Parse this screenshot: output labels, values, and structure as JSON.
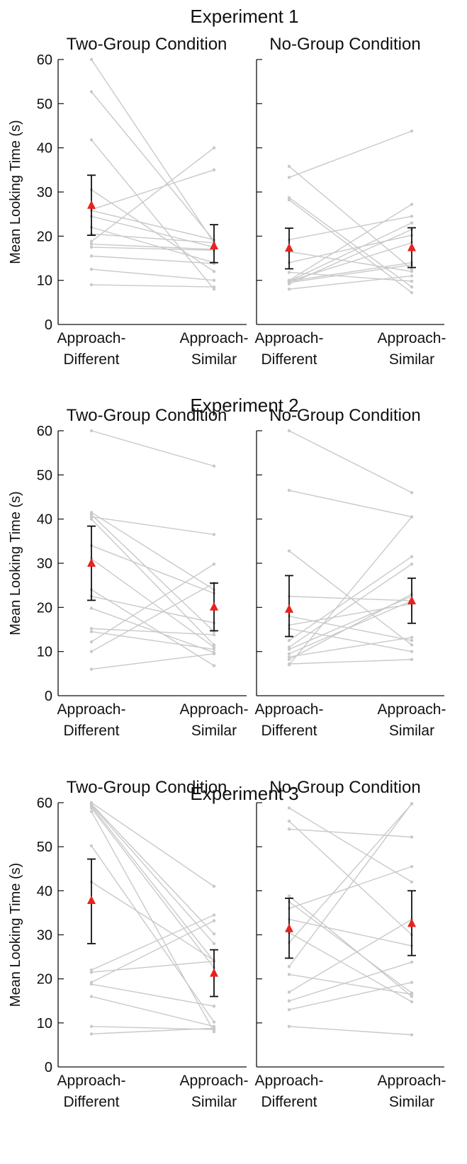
{
  "figure": {
    "ylabel": "Mean Looking Time (s)",
    "yticks": [
      0,
      10,
      20,
      30,
      40,
      50,
      60
    ],
    "categories": [
      [
        "Approach-",
        "Different"
      ],
      [
        "Approach-",
        "Similar"
      ]
    ],
    "colors": {
      "participant_line": "#c9c9c9",
      "participant_point": "#c9c9c9",
      "mean_marker": "#e8231e",
      "error_bar": "#111111",
      "axis": "#111111"
    }
  },
  "chart_data": [
    {
      "type": "line",
      "experiment": "Experiment 1",
      "title": "Two-Group Condition",
      "ylabel": "Mean Looking Time (s)",
      "ylim": [
        0,
        60
      ],
      "categories": [
        "Approach-Different",
        "Approach-Similar"
      ],
      "pairs": [
        [
          60,
          18.5
        ],
        [
          52.7,
          19
        ],
        [
          41.8,
          8
        ],
        [
          30.5,
          12
        ],
        [
          26,
          35
        ],
        [
          25.8,
          19.2
        ],
        [
          24.5,
          17.5
        ],
        [
          22,
          14
        ],
        [
          20.5,
          18.5
        ],
        [
          18.8,
          40
        ],
        [
          18.2,
          17
        ],
        [
          17.5,
          16.8
        ],
        [
          15.5,
          13.8
        ],
        [
          12.5,
          10
        ],
        [
          9,
          8.5
        ]
      ],
      "mean": [
        27,
        17.8
      ],
      "error": [
        [
          20.2,
          33.8
        ],
        [
          14,
          22.6
        ]
      ]
    },
    {
      "type": "line",
      "experiment": "Experiment 1",
      "title": "No-Group Condition",
      "ylabel": "",
      "ylim": [
        0,
        60
      ],
      "categories": [
        "Approach-Different",
        "Approach-Similar"
      ],
      "pairs": [
        [
          35.8,
          12.5
        ],
        [
          33.3,
          43.8
        ],
        [
          28.7,
          8.5
        ],
        [
          28.2,
          7.2
        ],
        [
          19.2,
          24.5
        ],
        [
          16.5,
          12
        ],
        [
          14,
          20.2
        ],
        [
          11.8,
          9.8
        ],
        [
          10,
          27.2
        ],
        [
          9.8,
          23
        ],
        [
          9.8,
          18.5
        ],
        [
          9.8,
          14
        ],
        [
          9.5,
          13.5
        ],
        [
          9.2,
          21.5
        ],
        [
          8,
          11
        ]
      ],
      "mean": [
        17.3,
        17.4
      ],
      "error": [
        [
          12.6,
          21.8
        ],
        [
          12.9,
          21.9
        ]
      ]
    },
    {
      "type": "line",
      "experiment": "Experiment 2",
      "title": "Two-Group Condition",
      "ylabel": "Mean Looking Time (s)",
      "ylim": [
        0,
        60
      ],
      "categories": [
        "Approach-Different",
        "Approach-Similar"
      ],
      "pairs": [
        [
          60,
          52
        ],
        [
          41.5,
          24
        ],
        [
          41,
          14.5
        ],
        [
          40.5,
          36.5
        ],
        [
          40,
          11.5
        ],
        [
          34,
          23.2
        ],
        [
          31,
          11
        ],
        [
          24,
          6.8
        ],
        [
          22.5,
          16.5
        ],
        [
          19.8,
          9.8
        ],
        [
          15.2,
          13.8
        ],
        [
          14.5,
          10.5
        ],
        [
          12.2,
          29.8
        ],
        [
          10,
          25.5
        ],
        [
          6,
          9.5
        ]
      ],
      "mean": [
        30,
        20.1
      ],
      "error": [
        [
          21.6,
          38.4
        ],
        [
          14.7,
          25.5
        ]
      ]
    },
    {
      "type": "line",
      "experiment": "Experiment 2",
      "title": "No-Group Condition",
      "ylabel": "",
      "ylim": [
        0,
        60
      ],
      "categories": [
        "Approach-Different",
        "Approach-Similar"
      ],
      "pairs": [
        [
          60,
          46
        ],
        [
          46.5,
          40.5
        ],
        [
          32.8,
          11.5
        ],
        [
          22.5,
          21.5
        ],
        [
          18,
          12.5
        ],
        [
          16,
          20.8
        ],
        [
          15.2,
          10
        ],
        [
          12.5,
          31.5
        ],
        [
          11,
          29.8
        ],
        [
          10.5,
          22.5
        ],
        [
          9.5,
          21.5
        ],
        [
          8.8,
          13.2
        ],
        [
          8.2,
          23
        ],
        [
          7.2,
          8.2
        ],
        [
          7,
          40.5
        ]
      ],
      "mean": [
        19.6,
        21.5
      ],
      "error": [
        [
          13.4,
          27.2
        ],
        [
          16.4,
          26.6
        ]
      ]
    },
    {
      "type": "line",
      "experiment": "Experiment 3",
      "title": "Two-Group Condition",
      "ylabel": "Mean Looking Time (s)",
      "ylim": [
        0,
        60
      ],
      "categories": [
        "Approach-Different",
        "Approach-Similar"
      ],
      "pairs": [
        [
          60,
          41
        ],
        [
          59.7,
          30.2
        ],
        [
          59.5,
          28
        ],
        [
          59.2,
          24
        ],
        [
          58.8,
          22.5
        ],
        [
          58,
          8
        ],
        [
          50.2,
          10.2
        ],
        [
          42,
          24.2
        ],
        [
          22,
          34.5
        ],
        [
          21.5,
          24
        ],
        [
          19.2,
          33.2
        ],
        [
          18.8,
          13.8
        ],
        [
          16,
          9.2
        ],
        [
          9.2,
          8.5
        ],
        [
          7.5,
          8.8
        ]
      ],
      "mean": [
        37.8,
        21.3
      ],
      "error": [
        [
          28,
          47.2
        ],
        [
          16,
          26.6
        ]
      ]
    },
    {
      "type": "line",
      "experiment": "Experiment 3",
      "title": "No-Group Condition",
      "ylabel": "",
      "ylim": [
        0,
        60
      ],
      "categories": [
        "Approach-Different",
        "Approach-Similar"
      ],
      "pairs": [
        [
          58.8,
          42
        ],
        [
          55.8,
          30
        ],
        [
          54,
          52.2
        ],
        [
          38.8,
          16
        ],
        [
          36,
          45.5
        ],
        [
          33.5,
          27.5
        ],
        [
          30.5,
          14.8
        ],
        [
          28.2,
          59.7
        ],
        [
          22.8,
          59.8
        ],
        [
          21,
          16.5
        ],
        [
          17,
          33.5
        ],
        [
          15,
          23.8
        ],
        [
          13,
          19.2
        ],
        [
          9.2,
          7.3
        ],
        [
          37.5,
          16.8
        ]
      ],
      "mean": [
        31.4,
        32.6
      ],
      "error": [
        [
          24.7,
          38.3
        ],
        [
          25.3,
          40
        ]
      ]
    }
  ]
}
